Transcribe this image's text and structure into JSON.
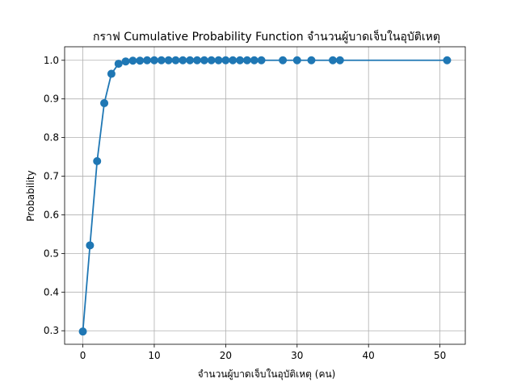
{
  "chart_data": {
    "type": "line",
    "title": "กราฟ Cumulative Probability Function จำนวนผู้บาดเจ็บในอุบัติเหตุ",
    "xlabel": "จำนวนผู้บาดเจ็บในอุบัติเหตุ (คน)",
    "ylabel": "Probability",
    "xlim": [
      -2.55,
      53.55
    ],
    "ylim": [
      0.265,
      1.035
    ],
    "xticks": [
      0,
      10,
      20,
      30,
      40,
      50
    ],
    "yticks": [
      0.3,
      0.4,
      0.5,
      0.6,
      0.7,
      0.8,
      0.9,
      1.0
    ],
    "xtick_labels": [
      "0",
      "10",
      "20",
      "30",
      "40",
      "50"
    ],
    "ytick_labels": [
      "0.3",
      "0.4",
      "0.5",
      "0.6",
      "0.7",
      "0.8",
      "0.9",
      "1.0"
    ],
    "grid": true,
    "series": [
      {
        "color": "#1f77b4",
        "marker": "circle",
        "x": [
          0,
          1,
          2,
          3,
          4,
          5,
          6,
          7,
          8,
          9,
          10,
          11,
          12,
          13,
          14,
          15,
          16,
          17,
          18,
          19,
          20,
          21,
          22,
          23,
          24,
          25,
          28,
          30,
          32,
          35,
          36,
          51
        ],
        "y": [
          0.298,
          0.521,
          0.739,
          0.889,
          0.965,
          0.991,
          0.997,
          0.999,
          0.999,
          1.0,
          1.0,
          1.0,
          1.0,
          1.0,
          1.0,
          1.0,
          1.0,
          1.0,
          1.0,
          1.0,
          1.0,
          1.0,
          1.0,
          1.0,
          1.0,
          1.0,
          1.0,
          1.0,
          1.0,
          1.0,
          1.0,
          1.0
        ]
      }
    ]
  }
}
